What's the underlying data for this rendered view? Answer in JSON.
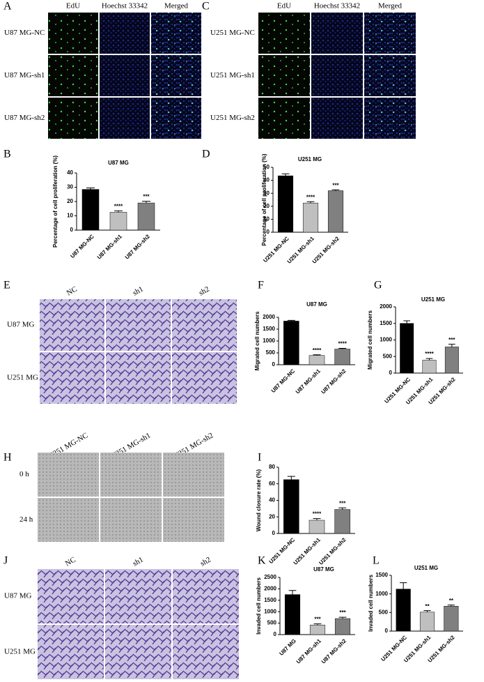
{
  "panels": [
    {
      "letter": "A",
      "columns": [
        "EdU",
        "Hoechst 33342",
        "Merged"
      ],
      "rows": [
        "U87 MG-NC",
        "U87 MG-sh1",
        "U87 MG-sh2"
      ]
    },
    {
      "letter": "C",
      "columns": [
        "EdU",
        "Hoechst 33342",
        "Merged"
      ],
      "rows": [
        "U251 MG-NC",
        "U251 MG-sh1",
        "U251 MG-sh2"
      ]
    },
    {
      "letter": "E",
      "columns": [
        "NC",
        "sh1",
        "sh2"
      ],
      "rows": [
        "U87 MG",
        "U251 MG"
      ]
    },
    {
      "letter": "H",
      "columns": [
        "U251 MG-NC",
        "U251 MG-sh1",
        "U251 MG-sh2"
      ],
      "rows": [
        "0 h",
        "24 h"
      ]
    },
    {
      "letter": "J",
      "columns": [
        "NC",
        "sh1",
        "sh2"
      ],
      "rows": [
        "U87 MG",
        "U251 MG"
      ]
    }
  ],
  "chart_data": [
    {
      "type": "bar",
      "letter": "B",
      "title": "U87 MG",
      "y_label": "Percentage of cell proliferation (%)",
      "categories": [
        "U87 MG-NC",
        "U87 MG-sh1",
        "U87 MG-sh2"
      ],
      "values": [
        28.5,
        12.5,
        19
      ],
      "errors": [
        1,
        1,
        1.2
      ],
      "annotations": [
        null,
        "****",
        "***"
      ],
      "colors": [
        "#000000",
        "#bfbfbf",
        "#808080"
      ],
      "ylim": [
        0,
        40
      ],
      "yticks": [
        0,
        10,
        20,
        30,
        40
      ]
    },
    {
      "type": "bar",
      "letter": "D",
      "title": "U251 MG",
      "y_label": "Percentage of cell proliferation (%)",
      "categories": [
        "U251 MG-NC",
        "U251 MG-sh1",
        "U251 MG-sh2"
      ],
      "values": [
        43.5,
        22.5,
        32
      ],
      "errors": [
        1.5,
        1,
        0.7
      ],
      "annotations": [
        null,
        "****",
        "***"
      ],
      "colors": [
        "#000000",
        "#bfbfbf",
        "#808080"
      ],
      "ylim": [
        0,
        50
      ],
      "yticks": [
        0,
        10,
        20,
        30,
        40,
        50
      ]
    },
    {
      "type": "bar",
      "letter": "F",
      "title": "U87 MG",
      "y_label": "Migrated cell numbers",
      "categories": [
        "U87 MG-NC",
        "U87 MG-sh1",
        "U87 MG-sh2"
      ],
      "values": [
        1840,
        390,
        660
      ],
      "errors": [
        30,
        30,
        30
      ],
      "annotations": [
        null,
        "****",
        "****"
      ],
      "colors": [
        "#000000",
        "#bfbfbf",
        "#808080"
      ],
      "ylim": [
        0,
        2000
      ],
      "yticks": [
        0,
        500,
        1000,
        1500,
        2000
      ]
    },
    {
      "type": "bar",
      "letter": "G",
      "title": "U251 MG",
      "y_label": "Migrated cell numbers",
      "categories": [
        "U251 MG-NC",
        "U251 MG-sh1",
        "U251 MG-sh2"
      ],
      "values": [
        1500,
        390,
        790
      ],
      "errors": [
        80,
        50,
        80
      ],
      "annotations": [
        null,
        "****",
        "***"
      ],
      "colors": [
        "#000000",
        "#bfbfbf",
        "#808080"
      ],
      "ylim": [
        0,
        2000
      ],
      "yticks": [
        0,
        500,
        1000,
        1500,
        2000
      ]
    },
    {
      "type": "bar",
      "letter": "I",
      "y_label": "Wound closure rate (%)",
      "categories": [
        "U251 MG-NC",
        "U251 MG-sh1",
        "U251 MG-sh2"
      ],
      "values": [
        65,
        16,
        29
      ],
      "errors": [
        4,
        2,
        2
      ],
      "annotations": [
        null,
        "****",
        "***"
      ],
      "colors": [
        "#000000",
        "#bfbfbf",
        "#808080"
      ],
      "ylim": [
        0,
        80
      ],
      "yticks": [
        0,
        20,
        40,
        60,
        80
      ]
    },
    {
      "type": "bar",
      "letter": "K",
      "title": "U87 MG",
      "y_label": "Invaded cell numbers",
      "categories": [
        "U87 MG",
        "U87 MG-sh1",
        "U87 MG-sh2"
      ],
      "values": [
        1750,
        420,
        700
      ],
      "errors": [
        180,
        50,
        60
      ],
      "annotations": [
        null,
        "***",
        "***"
      ],
      "colors": [
        "#000000",
        "#bfbfbf",
        "#808080"
      ],
      "ylim": [
        0,
        2500
      ],
      "yticks": [
        0,
        500,
        1000,
        1500,
        2000,
        2500
      ]
    },
    {
      "type": "bar",
      "letter": "L",
      "title": "U251 MG",
      "y_label": "Invaded cell numbers",
      "categories": [
        "U251 MG-NC",
        "U251 MG-sh1",
        "U251 MG-sh2"
      ],
      "values": [
        1130,
        510,
        670
      ],
      "errors": [
        170,
        40,
        30
      ],
      "annotations": [
        null,
        "**",
        "**"
      ],
      "colors": [
        "#000000",
        "#bfbfbf",
        "#808080"
      ],
      "ylim": [
        0,
        1500
      ],
      "yticks": [
        0,
        500,
        1000,
        1500
      ]
    }
  ]
}
